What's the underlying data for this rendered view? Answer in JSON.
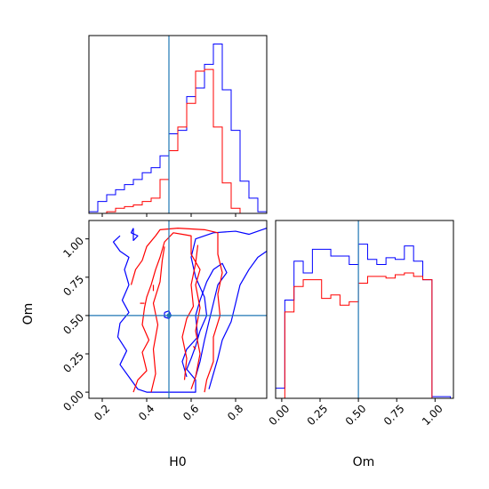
{
  "chart_data": {
    "type": "corner",
    "colors": {
      "red": "#ff0000",
      "blue": "#0000ff",
      "truth": "#1f77b4"
    },
    "truth": {
      "H0": 0.5,
      "Om": 0.5
    },
    "panels": [
      {
        "id": "hist-H0",
        "type": "histogram",
        "xlim": [
          0.14,
          0.94
        ],
        "xticks": [
          0.2,
          0.4,
          0.6,
          0.8
        ],
        "bin_edges": [
          0.14,
          0.18,
          0.22,
          0.26,
          0.3,
          0.34,
          0.38,
          0.42,
          0.46,
          0.5,
          0.54,
          0.58,
          0.62,
          0.66,
          0.7,
          0.74,
          0.78,
          0.82,
          0.86,
          0.9,
          0.94
        ],
        "series": [
          {
            "color": "blue",
            "counts": [
              0.01,
              0.07,
              0.11,
              0.14,
              0.17,
              0.2,
              0.24,
              0.27,
              0.34,
              0.47,
              0.49,
              0.69,
              0.74,
              0.88,
              1.0,
              0.73,
              0.49,
              0.19,
              0.09,
              0.01
            ]
          },
          {
            "color": "red",
            "counts": [
              0.0,
              0.0,
              0.01,
              0.03,
              0.04,
              0.05,
              0.07,
              0.09,
              0.2,
              0.37,
              0.51,
              0.65,
              0.84,
              0.85,
              0.51,
              0.18,
              0.03,
              0.0,
              0.0,
              0.0
            ]
          }
        ]
      },
      {
        "id": "hist-Om",
        "type": "histogram",
        "xlim": [
          -0.04,
          1.12
        ],
        "xticks": [
          0.0,
          0.25,
          0.5,
          0.75,
          1.0
        ],
        "xticklabels": [
          "0.00",
          "0.25",
          "0.50",
          "0.75",
          "1.00"
        ],
        "xlabel": "Om",
        "bin_edges": [
          -0.04,
          0.02,
          0.08,
          0.14,
          0.2,
          0.26,
          0.32,
          0.38,
          0.44,
          0.5,
          0.56,
          0.62,
          0.68,
          0.74,
          0.8,
          0.86,
          0.92,
          0.98,
          1.04,
          1.1
        ],
        "series": [
          {
            "color": "blue",
            "counts": [
              0.06,
              0.58,
              0.81,
              0.74,
              0.88,
              0.88,
              0.84,
              0.84,
              0.79,
              0.91,
              0.82,
              0.79,
              0.83,
              0.82,
              0.9,
              0.81,
              0.7,
              0.01,
              0.01
            ]
          },
          {
            "color": "red",
            "counts": [
              0.0,
              0.51,
              0.66,
              0.7,
              0.7,
              0.59,
              0.61,
              0.55,
              0.57,
              0.68,
              0.72,
              0.72,
              0.71,
              0.73,
              0.74,
              0.72,
              0.7,
              0.0,
              0.0
            ]
          }
        ]
      },
      {
        "id": "contour-H0-Om",
        "type": "contour",
        "xlim": [
          0.14,
          0.94
        ],
        "ylim": [
          -0.04,
          1.12
        ],
        "xticks": [
          0.2,
          0.4,
          0.6,
          0.8
        ],
        "yticks": [
          0.0,
          0.25,
          0.5,
          0.75,
          1.0
        ],
        "yticklabels": [
          "0.00",
          "0.25",
          "0.50",
          "0.75",
          "1.00"
        ],
        "xlabel": "H0",
        "ylabel": "Om",
        "contours": [
          {
            "color": "blue",
            "points": [
              [
                0.28,
                1.02
              ],
              [
                0.25,
                0.98
              ],
              [
                0.28,
                0.92
              ],
              [
                0.32,
                0.88
              ],
              [
                0.3,
                0.8
              ],
              [
                0.32,
                0.7
              ],
              [
                0.29,
                0.6
              ],
              [
                0.32,
                0.52
              ],
              [
                0.28,
                0.45
              ],
              [
                0.27,
                0.36
              ],
              [
                0.31,
                0.27
              ],
              [
                0.28,
                0.18
              ],
              [
                0.32,
                0.1
              ],
              [
                0.36,
                0.02
              ],
              [
                0.4,
                0.0
              ],
              [
                0.62,
                0.0
              ],
              [
                0.62,
                0.08
              ],
              [
                0.58,
                0.15
              ],
              [
                0.6,
                0.22
              ],
              [
                0.62,
                0.3
              ],
              [
                0.64,
                0.4
              ],
              [
                0.67,
                0.5
              ],
              [
                0.66,
                0.62
              ],
              [
                0.62,
                0.75
              ],
              [
                0.6,
                0.88
              ],
              [
                0.62,
                1.0
              ],
              [
                0.7,
                1.04
              ],
              [
                0.8,
                1.05
              ],
              [
                0.86,
                1.03
              ],
              [
                0.92,
                1.06
              ],
              [
                0.94,
                1.07
              ]
            ]
          },
          {
            "color": "blue",
            "points": [
              [
                0.34,
                1.07
              ],
              [
                0.33,
                1.04
              ],
              [
                0.36,
                1.02
              ],
              [
                0.34,
                0.99
              ],
              [
                0.34,
                1.07
              ]
            ]
          },
          {
            "color": "blue",
            "points": [
              [
                0.68,
                0.02
              ],
              [
                0.7,
                0.12
              ],
              [
                0.72,
                0.22
              ],
              [
                0.74,
                0.34
              ],
              [
                0.78,
                0.46
              ],
              [
                0.8,
                0.58
              ],
              [
                0.82,
                0.7
              ],
              [
                0.86,
                0.8
              ],
              [
                0.9,
                0.88
              ],
              [
                0.94,
                0.92
              ]
            ]
          },
          {
            "color": "blue",
            "points": [
              [
                0.58,
                0.1
              ],
              [
                0.56,
                0.2
              ],
              [
                0.58,
                0.28
              ],
              [
                0.63,
                0.36
              ],
              [
                0.62,
                0.5
              ],
              [
                0.64,
                0.6
              ],
              [
                0.67,
                0.72
              ],
              [
                0.7,
                0.8
              ],
              [
                0.74,
                0.84
              ],
              [
                0.76,
                0.78
              ],
              [
                0.72,
                0.7
              ],
              [
                0.7,
                0.58
              ],
              [
                0.68,
                0.46
              ],
              [
                0.66,
                0.34
              ],
              [
                0.64,
                0.2
              ],
              [
                0.62,
                0.1
              ]
            ]
          },
          {
            "color": "blue",
            "points": [
              [
                0.48,
                0.52
              ],
              [
                0.5,
                0.53
              ],
              [
                0.51,
                0.5
              ],
              [
                0.5,
                0.48
              ],
              [
                0.48,
                0.49
              ],
              [
                0.48,
                0.52
              ]
            ]
          },
          {
            "color": "red",
            "points": [
              [
                0.33,
                0.7
              ],
              [
                0.35,
                0.8
              ],
              [
                0.38,
                0.86
              ],
              [
                0.4,
                0.95
              ],
              [
                0.44,
                1.02
              ],
              [
                0.46,
                1.06
              ],
              [
                0.54,
                1.07
              ],
              [
                0.66,
                1.06
              ],
              [
                0.72,
                1.04
              ],
              [
                0.72,
                0.9
              ],
              [
                0.74,
                0.78
              ],
              [
                0.72,
                0.64
              ],
              [
                0.73,
                0.5
              ],
              [
                0.7,
                0.36
              ],
              [
                0.7,
                0.2
              ],
              [
                0.67,
                0.08
              ],
              [
                0.66,
                0.0
              ]
            ]
          },
          {
            "color": "red",
            "points": [
              [
                0.34,
                0.0
              ],
              [
                0.36,
                0.08
              ],
              [
                0.4,
                0.14
              ],
              [
                0.38,
                0.26
              ],
              [
                0.41,
                0.34
              ],
              [
                0.38,
                0.44
              ],
              [
                0.39,
                0.55
              ],
              [
                0.4,
                0.62
              ],
              [
                0.42,
                0.7
              ],
              [
                0.44,
                0.8
              ],
              [
                0.46,
                0.88
              ],
              [
                0.48,
                0.98
              ],
              [
                0.52,
                1.04
              ],
              [
                0.56,
                1.03
              ],
              [
                0.6,
                1.02
              ],
              [
                0.6,
                0.9
              ],
              [
                0.64,
                0.8
              ],
              [
                0.62,
                0.7
              ],
              [
                0.64,
                0.55
              ],
              [
                0.62,
                0.4
              ],
              [
                0.64,
                0.25
              ],
              [
                0.62,
                0.1
              ],
              [
                0.6,
                0.02
              ]
            ]
          },
          {
            "color": "red",
            "points": [
              [
                0.42,
                0.0
              ],
              [
                0.44,
                0.12
              ],
              [
                0.43,
                0.28
              ],
              [
                0.45,
                0.44
              ],
              [
                0.43,
                0.58
              ],
              [
                0.46,
                0.72
              ],
              [
                0.47,
                0.86
              ],
              [
                0.48,
                0.95
              ]
            ]
          },
          {
            "color": "red",
            "points": [
              [
                0.57,
                0.08
              ],
              [
                0.58,
                0.22
              ],
              [
                0.56,
                0.36
              ],
              [
                0.58,
                0.48
              ],
              [
                0.61,
                0.56
              ],
              [
                0.6,
                0.7
              ],
              [
                0.62,
                0.84
              ],
              [
                0.63,
                0.96
              ]
            ]
          },
          {
            "color": "red",
            "points": [
              [
                0.37,
                0.58
              ],
              [
                0.39,
                0.58
              ]
            ]
          },
          {
            "color": "red",
            "points": [
              [
                0.43,
                0.66
              ],
              [
                0.43,
                0.7
              ]
            ]
          },
          {
            "color": "red",
            "points": [
              [
                0.61,
                0.3
              ],
              [
                0.62,
                0.28
              ]
            ]
          }
        ]
      }
    ]
  }
}
